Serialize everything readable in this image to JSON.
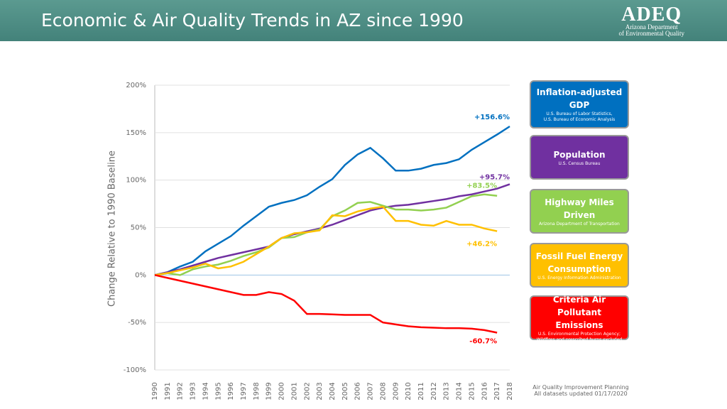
{
  "chart_data": {
    "type": "line",
    "title": "Economic & Air Quality Trends in AZ since 1990",
    "y_label": "Change Relative to 1990 Baseline",
    "categories": [
      "1990",
      "1991",
      "1992",
      "1993",
      "1994",
      "1995",
      "1996",
      "1997",
      "1998",
      "1999",
      "2000",
      "2001",
      "2002",
      "2003",
      "2004",
      "2005",
      "2006",
      "2007",
      "2008",
      "2009",
      "2010",
      "2011",
      "2012",
      "2013",
      "2014",
      "2015",
      "2016",
      "2017",
      "2018"
    ],
    "ylim": [
      -100,
      200
    ],
    "yticks": [
      {
        "value": -100,
        "label": "-100%"
      },
      {
        "value": -50,
        "label": "-50%"
      },
      {
        "value": 0,
        "label": "0%"
      },
      {
        "value": 50,
        "label": "50%"
      },
      {
        "value": 100,
        "label": "100%"
      },
      {
        "value": 150,
        "label": "150%"
      },
      {
        "value": 200,
        "label": "200%"
      }
    ],
    "grid": true,
    "series": [
      {
        "name": "Inflation-adjusted GDP",
        "color": "#0070c0",
        "source": [
          "U.S. Bureau of Labor Statistics,",
          "U.S. Bureau of Economic Analysis"
        ],
        "values": [
          0,
          3,
          9,
          14,
          25,
          33,
          41,
          52,
          62,
          72,
          76,
          79,
          84,
          93,
          101,
          116,
          127,
          134,
          123,
          110,
          110,
          112,
          116,
          118,
          122,
          132,
          140,
          148,
          156.6
        ],
        "value_labels": [
          null,
          null,
          null,
          null,
          null,
          null,
          null,
          null,
          null,
          null,
          null,
          null,
          null,
          null,
          null,
          null,
          null,
          null,
          null,
          null,
          null,
          null,
          null,
          null,
          null,
          null,
          null,
          null,
          "+156.6%"
        ]
      },
      {
        "name": "Population",
        "color": "#7030a0",
        "source": [
          "U.S. Census Bureau"
        ],
        "values": [
          0,
          3,
          6,
          10,
          14,
          18,
          21,
          24,
          27,
          30,
          39,
          43,
          46,
          49,
          53,
          58,
          63,
          68,
          71,
          73,
          74,
          76,
          78,
          80,
          83,
          85,
          88,
          91,
          95.7
        ],
        "value_labels": [
          null,
          null,
          null,
          null,
          null,
          null,
          null,
          null,
          null,
          null,
          null,
          null,
          null,
          null,
          null,
          null,
          null,
          null,
          null,
          null,
          null,
          null,
          null,
          null,
          null,
          null,
          null,
          null,
          "+95.7%"
        ]
      },
      {
        "name": "Highway Miles Driven",
        "color": "#92d050",
        "source": [
          "Arizona Department of Transportation"
        ],
        "values": [
          0,
          2,
          0,
          6,
          9,
          11,
          15,
          20,
          24,
          29,
          39,
          40,
          45,
          48,
          62,
          68,
          76,
          77,
          73,
          69,
          69,
          68,
          69,
          71,
          77,
          83,
          85,
          83.5,
          null
        ],
        "value_labels": [
          null,
          null,
          null,
          null,
          null,
          null,
          null,
          null,
          null,
          null,
          null,
          null,
          null,
          null,
          null,
          null,
          null,
          null,
          null,
          null,
          null,
          null,
          null,
          null,
          null,
          null,
          null,
          "+83.5%",
          null
        ]
      },
      {
        "name": "Fossil Fuel Energy Consumption",
        "color": "#ffc000",
        "source": [
          "U.S. Energy Information Administration"
        ],
        "values": [
          0,
          2,
          5,
          8,
          12,
          7,
          9,
          14,
          22,
          30,
          39,
          44,
          45,
          47,
          63,
          62,
          67,
          70,
          72,
          57,
          57,
          53,
          52,
          57,
          53,
          53,
          49,
          46.2,
          null
        ],
        "value_labels": [
          null,
          null,
          null,
          null,
          null,
          null,
          null,
          null,
          null,
          null,
          null,
          null,
          null,
          null,
          null,
          null,
          null,
          null,
          null,
          null,
          null,
          null,
          null,
          null,
          null,
          null,
          null,
          "+46.2%",
          null
        ]
      },
      {
        "name": "Criteria Air Pollutant Emissions",
        "color": "#ff0000",
        "source": [
          "U.S. Environmental Protection Agency;",
          "Wildfires and prescribed burns excluded"
        ],
        "values": [
          0,
          -3,
          -6,
          -9,
          -12,
          -15,
          -18,
          -21,
          -21,
          -18,
          -20,
          -27,
          -41,
          -41,
          -41.5,
          -42,
          -42,
          -42,
          -50,
          -52,
          -54,
          -55,
          -55.5,
          -56,
          -56,
          -56.5,
          -58,
          -60.7,
          null
        ],
        "value_labels": [
          null,
          null,
          null,
          null,
          null,
          null,
          null,
          null,
          null,
          null,
          null,
          null,
          null,
          null,
          null,
          null,
          null,
          null,
          null,
          null,
          null,
          null,
          null,
          null,
          null,
          null,
          null,
          "-60.7%",
          null
        ]
      }
    ]
  },
  "logo": {
    "name": "ADEQ",
    "line1": "Arizona Department",
    "line2": "of Environmental Quality"
  },
  "footer": {
    "lines": [
      "Air Quality Improvement Planning",
      "All datasets updated 01/17/2020"
    ]
  }
}
